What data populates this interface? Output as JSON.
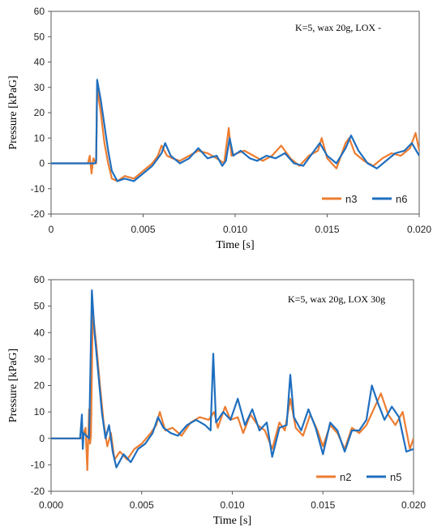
{
  "chart_data": [
    {
      "type": "line",
      "annotation": "K=5, wax 20g, LOX -",
      "xlabel": "Time [s]",
      "ylabel": "Pressure [kPaG]",
      "xlim": [
        0,
        0.02
      ],
      "ylim": [
        -20,
        60
      ],
      "xticks": [
        "0",
        "0.005",
        "0.010",
        "0.015",
        "0.020"
      ],
      "yticks": [
        "-20",
        "-10",
        "0",
        "10",
        "20",
        "30",
        "40",
        "50",
        "60"
      ],
      "grid": false,
      "legend_position": "bottom-right",
      "series": [
        {
          "name": "n3",
          "color": "#ED7D31",
          "points": [
            [
              0.0,
              0
            ],
            [
              0.002,
              0
            ],
            [
              0.0021,
              3
            ],
            [
              0.0022,
              -4
            ],
            [
              0.0023,
              2
            ],
            [
              0.00245,
              0
            ],
            [
              0.0025,
              30
            ],
            [
              0.0027,
              20
            ],
            [
              0.0029,
              8
            ],
            [
              0.0031,
              0
            ],
            [
              0.0033,
              -6
            ],
            [
              0.0036,
              -7
            ],
            [
              0.004,
              -5
            ],
            [
              0.0045,
              -6
            ],
            [
              0.005,
              -3
            ],
            [
              0.0055,
              0
            ],
            [
              0.0058,
              3
            ],
            [
              0.006,
              7
            ],
            [
              0.0063,
              3
            ],
            [
              0.0066,
              2
            ],
            [
              0.007,
              1
            ],
            [
              0.0075,
              3
            ],
            [
              0.008,
              5
            ],
            [
              0.0085,
              4
            ],
            [
              0.009,
              2
            ],
            [
              0.0094,
              0
            ],
            [
              0.00965,
              14
            ],
            [
              0.0098,
              3
            ],
            [
              0.0101,
              4
            ],
            [
              0.0105,
              5
            ],
            [
              0.011,
              3
            ],
            [
              0.0115,
              1
            ],
            [
              0.012,
              3
            ],
            [
              0.0125,
              7
            ],
            [
              0.013,
              2
            ],
            [
              0.0135,
              -1
            ],
            [
              0.014,
              3
            ],
            [
              0.0145,
              5
            ],
            [
              0.0147,
              10
            ],
            [
              0.015,
              2
            ],
            [
              0.0155,
              -2
            ],
            [
              0.016,
              8
            ],
            [
              0.0162,
              10
            ],
            [
              0.0165,
              4
            ],
            [
              0.017,
              1
            ],
            [
              0.0175,
              -1
            ],
            [
              0.018,
              2
            ],
            [
              0.0185,
              4
            ],
            [
              0.019,
              3
            ],
            [
              0.0195,
              6
            ],
            [
              0.0198,
              12
            ],
            [
              0.02,
              5
            ]
          ]
        },
        {
          "name": "n6",
          "color": "#1F6FBF",
          "points": [
            [
              0.0,
              0
            ],
            [
              0.0024,
              0
            ],
            [
              0.00245,
              1
            ],
            [
              0.0025,
              33
            ],
            [
              0.0027,
              25
            ],
            [
              0.0029,
              15
            ],
            [
              0.0031,
              5
            ],
            [
              0.0033,
              -3
            ],
            [
              0.0036,
              -7
            ],
            [
              0.004,
              -6
            ],
            [
              0.0045,
              -7
            ],
            [
              0.005,
              -4
            ],
            [
              0.0055,
              -1
            ],
            [
              0.0058,
              2
            ],
            [
              0.006,
              4
            ],
            [
              0.0062,
              8
            ],
            [
              0.0065,
              3
            ],
            [
              0.007,
              0
            ],
            [
              0.0075,
              2
            ],
            [
              0.008,
              6
            ],
            [
              0.0085,
              2
            ],
            [
              0.009,
              3
            ],
            [
              0.0093,
              -1
            ],
            [
              0.0095,
              1
            ],
            [
              0.0097,
              10
            ],
            [
              0.0099,
              3
            ],
            [
              0.0103,
              5
            ],
            [
              0.0108,
              2
            ],
            [
              0.0112,
              1
            ],
            [
              0.0117,
              3
            ],
            [
              0.0122,
              2
            ],
            [
              0.0127,
              4
            ],
            [
              0.0132,
              0
            ],
            [
              0.0137,
              -1
            ],
            [
              0.0142,
              4
            ],
            [
              0.0146,
              8
            ],
            [
              0.015,
              3
            ],
            [
              0.0155,
              0
            ],
            [
              0.016,
              6
            ],
            [
              0.0163,
              11
            ],
            [
              0.0167,
              5
            ],
            [
              0.0172,
              0
            ],
            [
              0.0177,
              -2
            ],
            [
              0.0182,
              1
            ],
            [
              0.0187,
              4
            ],
            [
              0.0192,
              5
            ],
            [
              0.0196,
              8
            ],
            [
              0.02,
              3
            ]
          ]
        }
      ]
    },
    {
      "type": "line",
      "annotation": "K=5, wax 20g, LOX 30g",
      "xlabel": "Time [s]",
      "ylabel": "Pressure [kPaG]",
      "xlim": [
        0,
        0.02
      ],
      "ylim": [
        -20,
        60
      ],
      "xticks": [
        "0.000",
        "0.005",
        "0.010",
        "0.015",
        "0.020"
      ],
      "yticks": [
        "-20",
        "-10",
        "0",
        "10",
        "20",
        "30",
        "40",
        "50",
        "60"
      ],
      "grid": false,
      "legend_position": "bottom-right",
      "series": [
        {
          "name": "n2",
          "color": "#ED7D31",
          "points": [
            [
              0.0,
              0
            ],
            [
              0.0017,
              0
            ],
            [
              0.0019,
              4
            ],
            [
              0.002,
              -12
            ],
            [
              0.0021,
              11
            ],
            [
              0.00215,
              -2
            ],
            [
              0.0022,
              1
            ],
            [
              0.0023,
              48
            ],
            [
              0.0025,
              35
            ],
            [
              0.0027,
              20
            ],
            [
              0.0029,
              6
            ],
            [
              0.0031,
              -3
            ],
            [
              0.0033,
              2
            ],
            [
              0.0035,
              -8
            ],
            [
              0.0038,
              -5
            ],
            [
              0.0042,
              -8
            ],
            [
              0.0046,
              -4
            ],
            [
              0.005,
              -2
            ],
            [
              0.0055,
              2
            ],
            [
              0.0058,
              5
            ],
            [
              0.006,
              10
            ],
            [
              0.0063,
              3
            ],
            [
              0.0067,
              4
            ],
            [
              0.0072,
              1
            ],
            [
              0.0077,
              6
            ],
            [
              0.0082,
              8
            ],
            [
              0.0087,
              7
            ],
            [
              0.009,
              10
            ],
            [
              0.0092,
              4
            ],
            [
              0.0096,
              12
            ],
            [
              0.0099,
              7
            ],
            [
              0.0103,
              8
            ],
            [
              0.0106,
              2
            ],
            [
              0.011,
              9
            ],
            [
              0.0114,
              5
            ],
            [
              0.0118,
              3
            ],
            [
              0.0122,
              -4
            ],
            [
              0.0126,
              6
            ],
            [
              0.0129,
              3
            ],
            [
              0.0132,
              15
            ],
            [
              0.0135,
              4
            ],
            [
              0.0139,
              1
            ],
            [
              0.0143,
              9
            ],
            [
              0.0147,
              3
            ],
            [
              0.015,
              -3
            ],
            [
              0.0154,
              5
            ],
            [
              0.0158,
              2
            ],
            [
              0.0162,
              -4
            ],
            [
              0.0166,
              4
            ],
            [
              0.017,
              2
            ],
            [
              0.0174,
              5
            ],
            [
              0.0178,
              11
            ],
            [
              0.0182,
              17
            ],
            [
              0.0186,
              9
            ],
            [
              0.019,
              5
            ],
            [
              0.0194,
              10
            ],
            [
              0.0198,
              -4
            ],
            [
              0.02,
              0
            ]
          ]
        },
        {
          "name": "n5",
          "color": "#1F6FBF",
          "points": [
            [
              0.0,
              0
            ],
            [
              0.0016,
              0
            ],
            [
              0.0017,
              9
            ],
            [
              0.00175,
              -4
            ],
            [
              0.0018,
              2
            ],
            [
              0.0021,
              0
            ],
            [
              0.00225,
              56
            ],
            [
              0.0024,
              40
            ],
            [
              0.0026,
              25
            ],
            [
              0.0028,
              10
            ],
            [
              0.003,
              0
            ],
            [
              0.0032,
              5
            ],
            [
              0.0034,
              -5
            ],
            [
              0.0036,
              -11
            ],
            [
              0.004,
              -6
            ],
            [
              0.0044,
              -9
            ],
            [
              0.0048,
              -4
            ],
            [
              0.0052,
              -2
            ],
            [
              0.0056,
              2
            ],
            [
              0.0059,
              8
            ],
            [
              0.0062,
              4
            ],
            [
              0.0066,
              2
            ],
            [
              0.007,
              1
            ],
            [
              0.0075,
              5
            ],
            [
              0.008,
              7
            ],
            [
              0.0085,
              5
            ],
            [
              0.0088,
              3
            ],
            [
              0.00895,
              32
            ],
            [
              0.0091,
              6
            ],
            [
              0.0095,
              10
            ],
            [
              0.0099,
              7
            ],
            [
              0.0103,
              15
            ],
            [
              0.0107,
              5
            ],
            [
              0.0111,
              11
            ],
            [
              0.0115,
              3
            ],
            [
              0.0119,
              6
            ],
            [
              0.0122,
              -7
            ],
            [
              0.0126,
              4
            ],
            [
              0.013,
              5
            ],
            [
              0.0132,
              24
            ],
            [
              0.0134,
              8
            ],
            [
              0.0138,
              3
            ],
            [
              0.0142,
              11
            ],
            [
              0.0146,
              4
            ],
            [
              0.015,
              -6
            ],
            [
              0.0154,
              6
            ],
            [
              0.0158,
              3
            ],
            [
              0.0162,
              -5
            ],
            [
              0.0166,
              3
            ],
            [
              0.017,
              3
            ],
            [
              0.0174,
              7
            ],
            [
              0.0177,
              20
            ],
            [
              0.018,
              14
            ],
            [
              0.0184,
              7
            ],
            [
              0.0188,
              12
            ],
            [
              0.0192,
              8
            ],
            [
              0.0196,
              -5
            ],
            [
              0.02,
              -4
            ]
          ]
        }
      ]
    }
  ]
}
